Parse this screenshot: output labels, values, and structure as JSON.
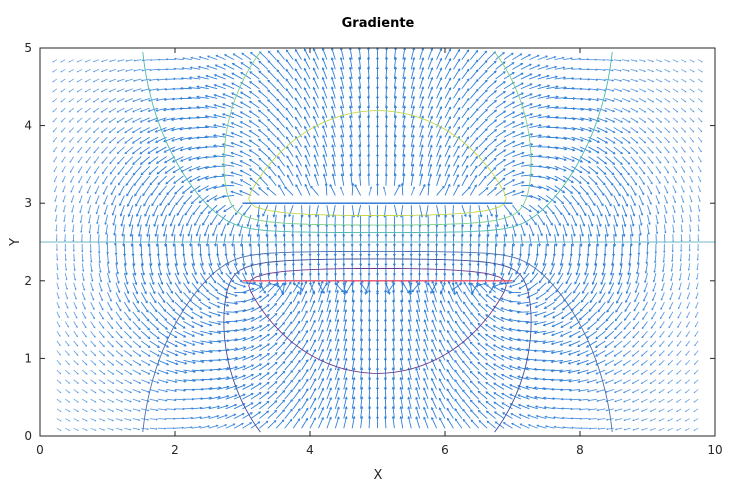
{
  "chart_data": {
    "type": "quiver-contour",
    "title": "Gradiente",
    "xlabel": "X",
    "ylabel": "Y",
    "xlim": [
      0,
      10
    ],
    "ylim": [
      0,
      5
    ],
    "xticks": [
      "0",
      "2",
      "4",
      "6",
      "8",
      "10"
    ],
    "yticks": [
      "0",
      "1",
      "2",
      "3",
      "4",
      "5"
    ],
    "grid": false,
    "box": true,
    "plates": [
      {
        "name": "upper",
        "x": [
          3,
          7
        ],
        "y": 3
      },
      {
        "name": "lower",
        "x": [
          3,
          7
        ],
        "y": 2
      }
    ],
    "zero_line_y": 2.5,
    "contour_levels": [
      {
        "level": 0.25,
        "color": "#4fb9af"
      },
      {
        "level": 0.45,
        "color": "#7ccf86"
      },
      {
        "level": 0.7,
        "color": "#c4d84a"
      },
      {
        "level": -0.25,
        "color": "#4a6fb0"
      },
      {
        "level": -0.45,
        "color": "#3f4f9a"
      },
      {
        "level": -0.7,
        "color": "#6a3b8e"
      }
    ],
    "arrow_color": "#2f7fd8",
    "upper_plate_color": "#1f6fd0",
    "lower_plate_color": "#e8506a"
  }
}
